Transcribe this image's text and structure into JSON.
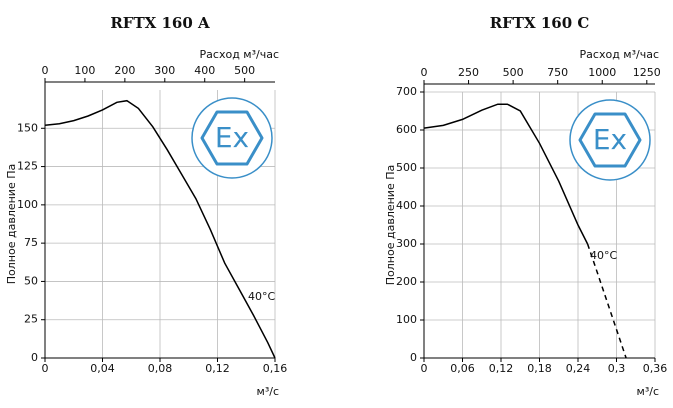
{
  "chart_data": [
    {
      "type": "line",
      "title": "RFTX 160 A",
      "ylabel": "Полное давление Па",
      "xlabel": "м³/с",
      "x2label": "Расход м³/час",
      "logo": "Ex",
      "annotations": [
        "40°C"
      ],
      "xlim": [
        0,
        0.16
      ],
      "xticks": [
        0,
        {
          "value": 0.04,
          "label": "0,04"
        },
        {
          "value": 0.08,
          "label": "0,08"
        },
        {
          "value": 0.12,
          "label": "0,12"
        },
        {
          "value": 0.16,
          "label": "0,16"
        }
      ],
      "x2lim": [
        0,
        576
      ],
      "x2ticks": [
        0,
        100,
        200,
        300,
        400,
        500
      ],
      "ylim": [
        0,
        175
      ],
      "yticks": [
        0,
        25,
        50,
        75,
        100,
        125,
        150
      ],
      "grid": true,
      "series": [
        {
          "color": "#000000",
          "dashed": false,
          "x": [
            0,
            0.01,
            0.02,
            0.03,
            0.04,
            0.05,
            0.057,
            0.065,
            0.075,
            0.085,
            0.095,
            0.105,
            0.115,
            0.125,
            0.135,
            0.145,
            0.155,
            0.16
          ],
          "values": [
            152,
            153,
            155,
            158,
            162,
            167,
            168,
            163,
            151,
            136,
            120,
            104,
            84,
            62,
            45,
            28,
            10,
            0
          ]
        }
      ]
    },
    {
      "type": "line",
      "title": "RFTX 160 C",
      "ylabel": "Полное давление Па",
      "xlabel": "м³/с",
      "x2label": "Расход м³/час",
      "logo": "Ex",
      "annotations": [
        "40°C"
      ],
      "xlim": [
        0,
        0.36
      ],
      "xticks": [
        0,
        {
          "value": 0.06,
          "label": "0,06"
        },
        {
          "value": 0.12,
          "label": "0,12"
        },
        {
          "value": 0.18,
          "label": "0,18"
        },
        {
          "value": 0.24,
          "label": "0,24"
        },
        {
          "value": 0.3,
          "label": "0,3"
        },
        {
          "value": 0.36,
          "label": "0,36"
        }
      ],
      "x2lim": [
        0,
        1296
      ],
      "x2ticks": [
        0,
        250,
        500,
        750,
        1000,
        1250
      ],
      "ylim": [
        0,
        700
      ],
      "yticks": [
        0,
        100,
        200,
        300,
        400,
        500,
        600,
        700
      ],
      "grid": true,
      "series": [
        {
          "color": "#000000",
          "dashed": false,
          "x": [
            0,
            0.03,
            0.06,
            0.09,
            0.115,
            0.13,
            0.15,
            0.18,
            0.21,
            0.24,
            0.255
          ],
          "values": [
            605,
            612,
            628,
            652,
            668,
            668,
            650,
            565,
            465,
            350,
            300
          ]
        },
        {
          "color": "#000000",
          "dashed": true,
          "x": [
            0.255,
            0.27,
            0.285,
            0.3,
            0.315
          ],
          "values": [
            300,
            225,
            150,
            75,
            0
          ]
        }
      ]
    }
  ]
}
